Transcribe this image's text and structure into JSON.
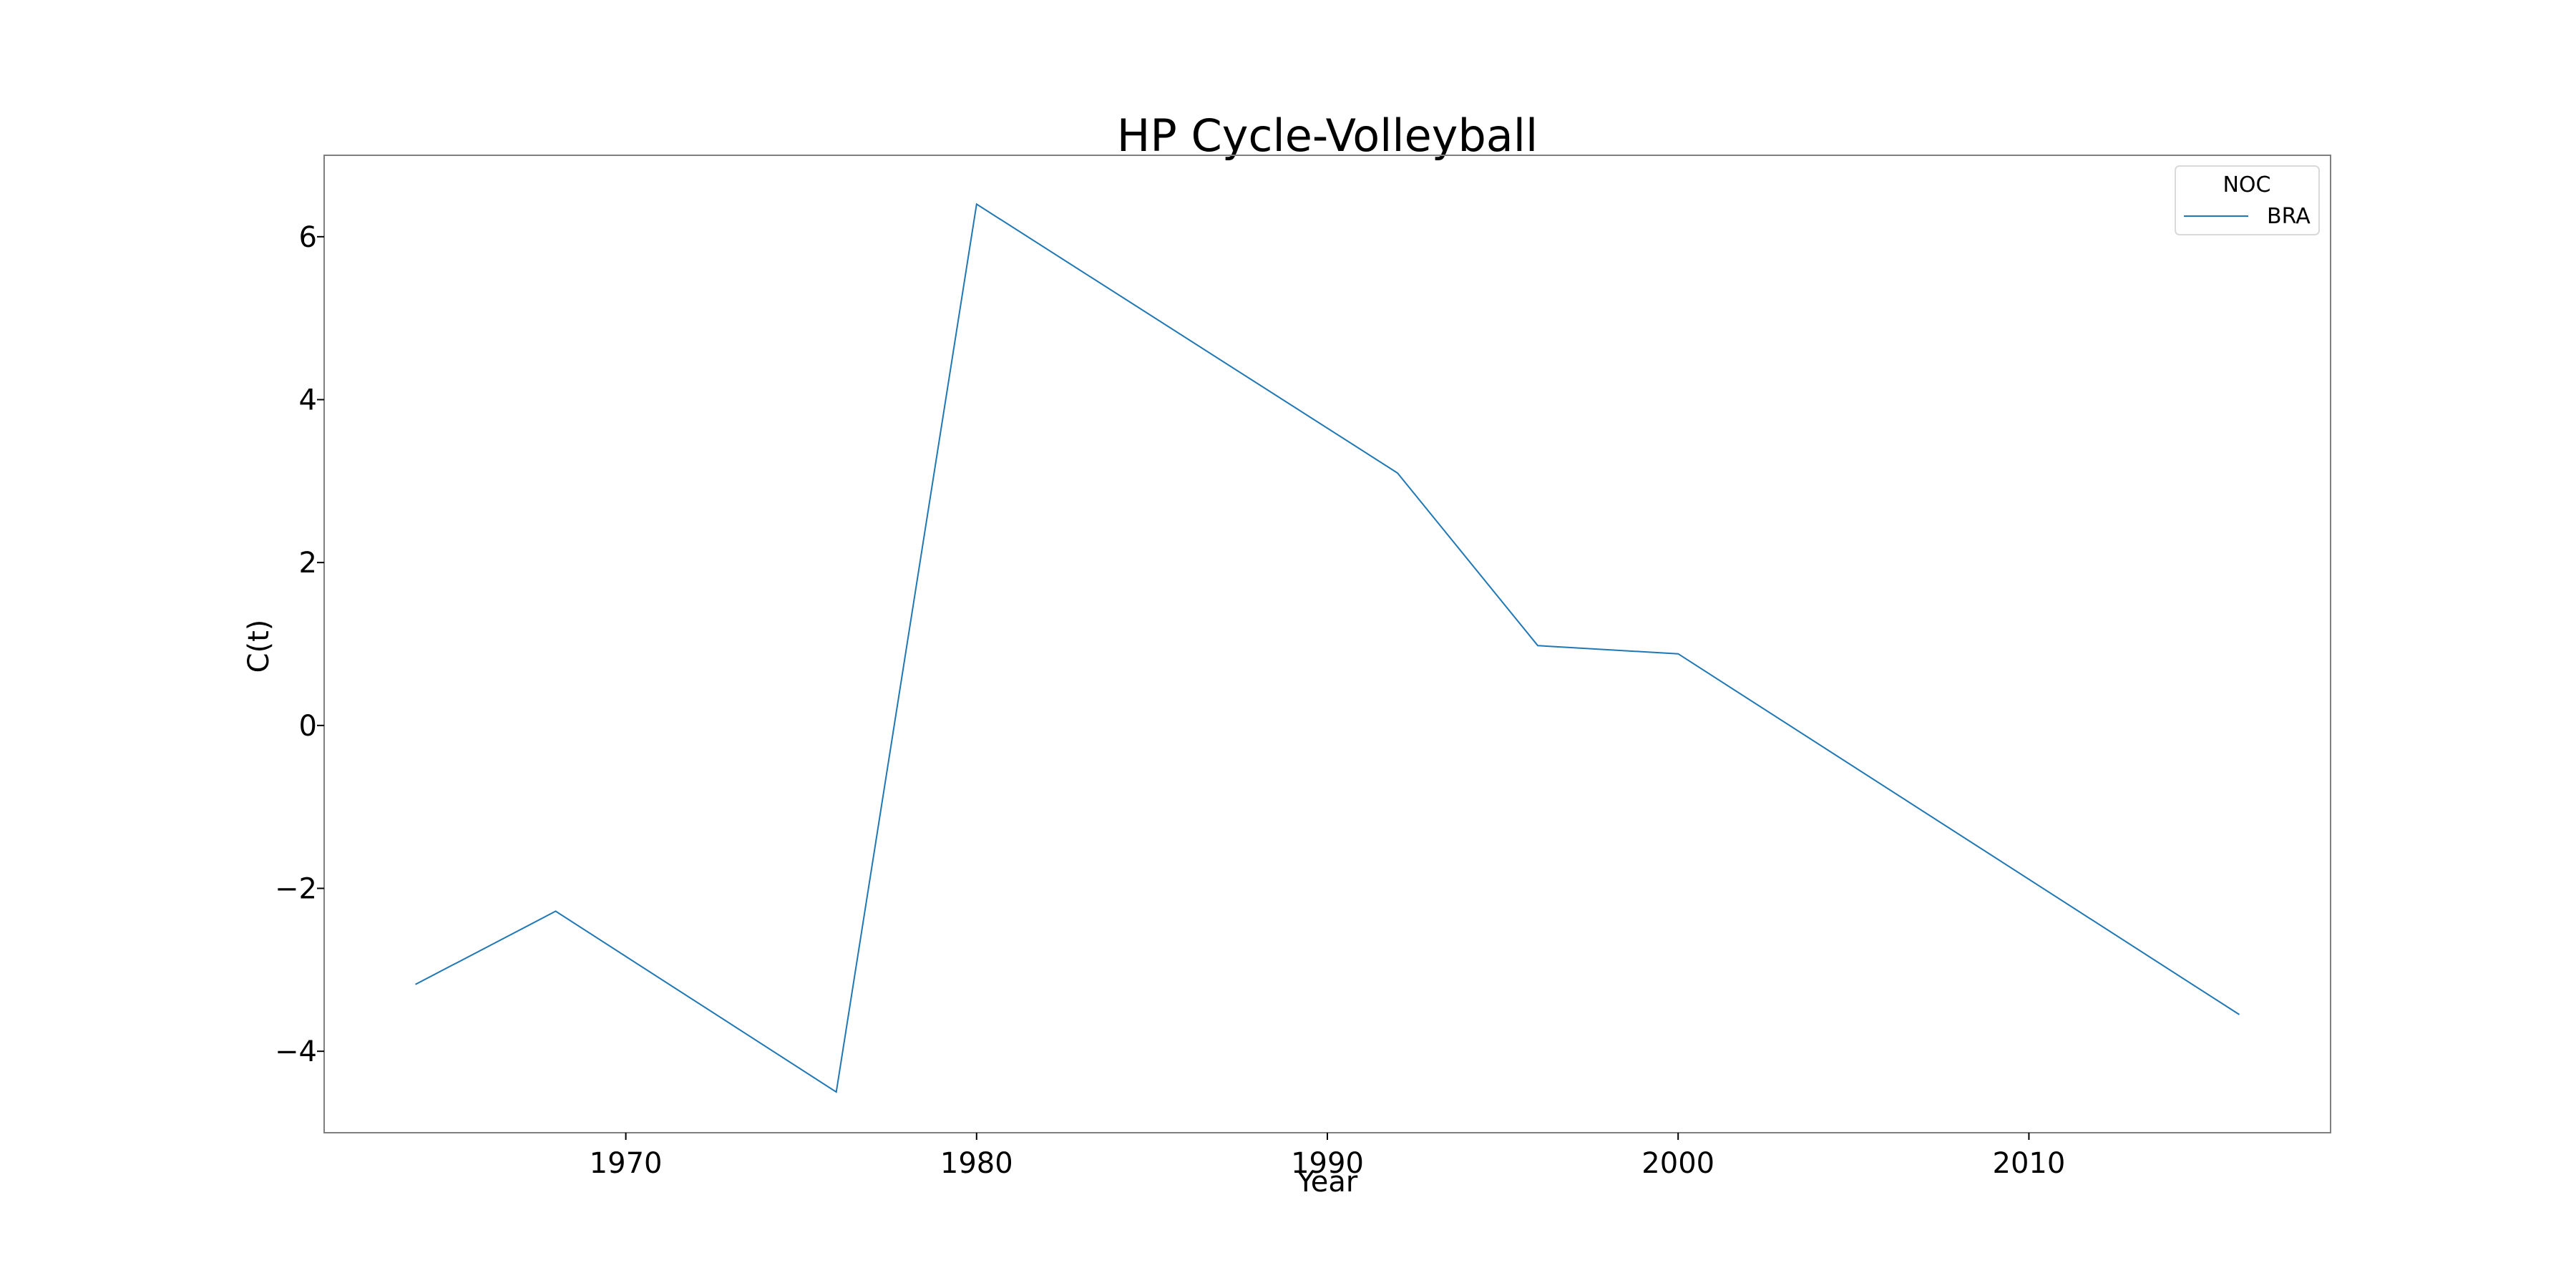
{
  "chart_data": {
    "type": "line",
    "title": "HP Cycle-Volleyball",
    "xlabel": "Year",
    "ylabel": "C(t)",
    "xlim": [
      1961.4,
      2018.6
    ],
    "ylim": [
      -5.0,
      7.0
    ],
    "xticks": [
      1970,
      1980,
      1990,
      2000,
      2010
    ],
    "xtick_labels": [
      "1970",
      "1980",
      "1990",
      "2000",
      "2010"
    ],
    "yticks": [
      -4,
      -2,
      0,
      2,
      4,
      6
    ],
    "ytick_labels": [
      "−4",
      "−2",
      "0",
      "2",
      "4",
      "6"
    ],
    "grid": false,
    "legend": {
      "title": "NOC",
      "placement": "top-right",
      "entries": [
        "BRA"
      ]
    },
    "series": [
      {
        "name": "BRA",
        "color": "#1f77b4",
        "x": [
          1964,
          1968,
          1976,
          1980,
          1992,
          1996,
          2000,
          2016
        ],
        "y": [
          -3.18,
          -2.28,
          -4.5,
          6.4,
          3.1,
          0.98,
          0.88,
          -3.55
        ]
      }
    ]
  }
}
